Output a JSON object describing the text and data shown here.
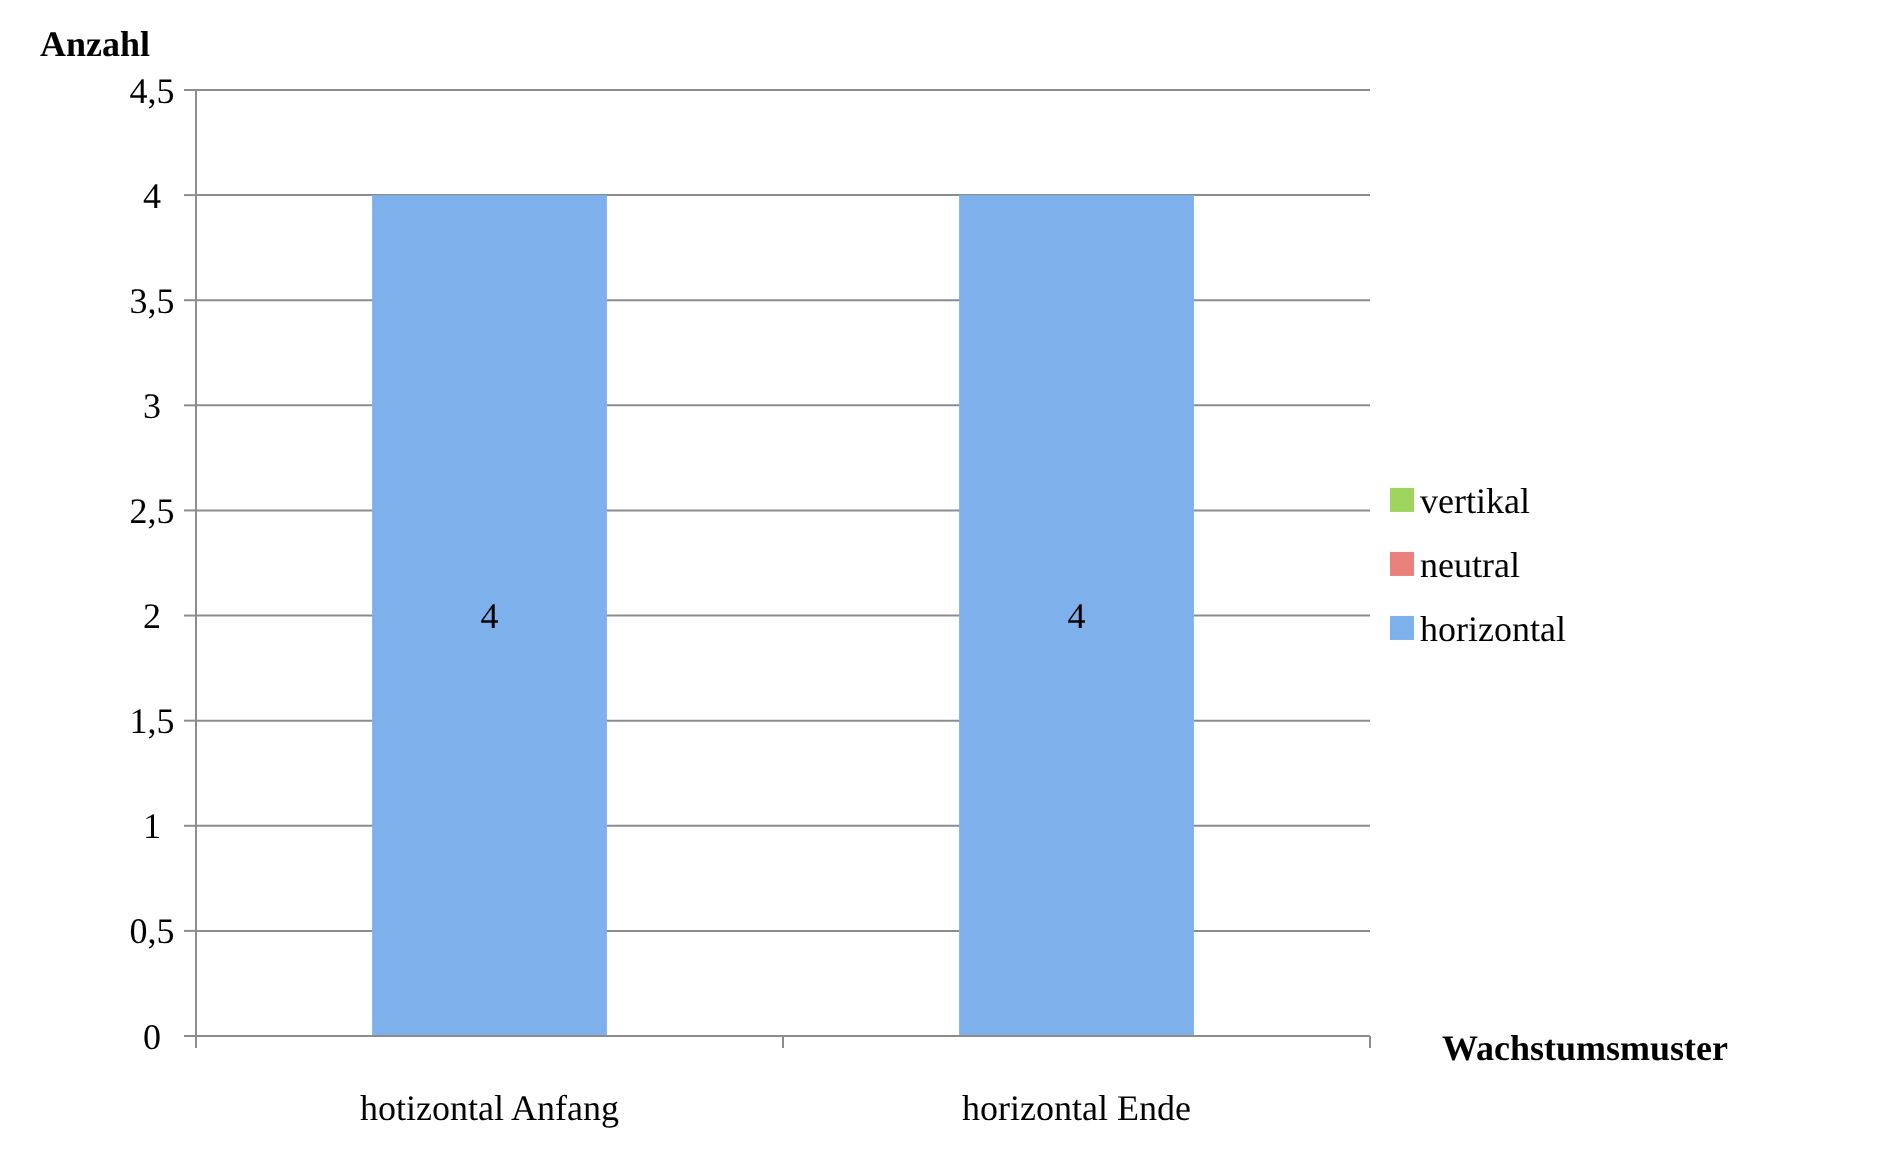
{
  "chart_data": {
    "type": "bar",
    "stacked": true,
    "ylabel": "Anzahl",
    "xlabel": "Wachstumsmuster",
    "categories": [
      "hotizontal Anfang",
      "horizontal Ende"
    ],
    "series": [
      {
        "name": "horizontal",
        "color": "#7eb0ec",
        "values": [
          4,
          4
        ],
        "value_labels": [
          "4",
          "4"
        ]
      },
      {
        "name": "neutral",
        "color": "#e8807c",
        "values": [
          0,
          0
        ]
      },
      {
        "name": "vertikal",
        "color": "#9fd45e",
        "values": [
          0,
          0
        ]
      }
    ],
    "ylim": [
      0,
      4.5
    ],
    "yticks": [
      0,
      {
        "value": 0.5,
        "label": "0,5"
      },
      1,
      {
        "value": 1.5,
        "label": "1,5"
      },
      2,
      {
        "value": 2.5,
        "label": "2,5"
      },
      3,
      {
        "value": 3.5,
        "label": "3,5"
      },
      4,
      {
        "value": 4.5,
        "label": "4,5"
      }
    ],
    "grid": "y",
    "legend": "right"
  }
}
